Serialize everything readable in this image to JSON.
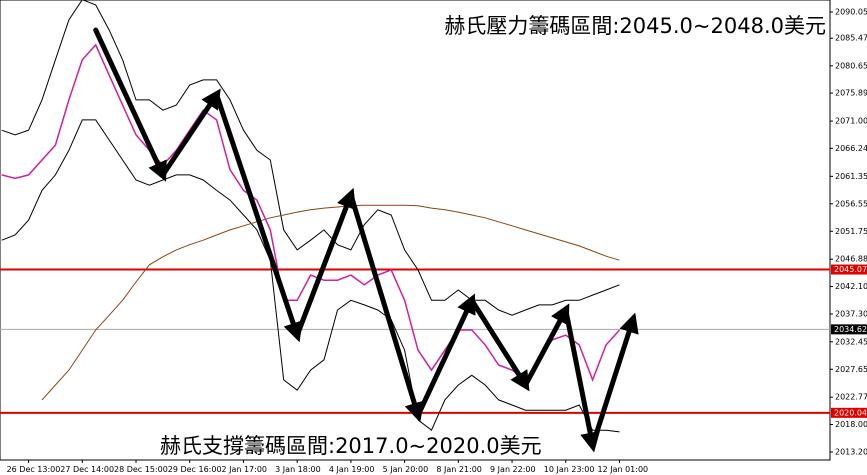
{
  "chart_data": {
    "type": "line",
    "categories": [
      null,
      null,
      "26 Dec 13:00",
      null,
      null,
      null,
      "27 Dec 14:00",
      null,
      null,
      null,
      "28 Dec 15:00",
      null,
      null,
      null,
      "29 Dec 16:00",
      null,
      null,
      null,
      "2 Jan 17:00",
      null,
      null,
      null,
      "3 Jan 18:00",
      null,
      null,
      null,
      "4 Jan 19:00",
      null,
      null,
      null,
      "5 Jan 20:00",
      null,
      null,
      null,
      "8 Jan 21:00",
      null,
      null,
      null,
      "9 Jan 22:00",
      null,
      null,
      null,
      "10 Jan 23:00",
      null,
      null,
      null,
      "12 Jan 01:00",
      null
    ],
    "series": [
      {
        "color": "#000000",
        "values": [
          2069.4,
          2068.6,
          2069.4,
          2074.7,
          2081.7,
          2088.7,
          2092.2,
          2091.3,
          2086.9,
          2081.7,
          2074.7,
          2074.7,
          2072.9,
          2073.8,
          2077.3,
          2078.2,
          2078.2,
          2074.7,
          2069.4,
          2065.9,
          2064.2,
          2052.0,
          2048.5,
          2050.2,
          2052.0,
          2049.4,
          2048.5,
          2052.9,
          2055.5,
          2054.6,
          2048.5,
          2045.0,
          2039.7,
          2039.7,
          2041.5,
          2039.7,
          2039.7,
          2038.0,
          2037.1,
          2038.0,
          2038.9,
          2038.9,
          2039.7,
          2039.7,
          2040.6,
          2041.5,
          2042.4,
          null
        ]
      },
      {
        "color": "#000000",
        "values": [
          2050.2,
          2051.1,
          2053.7,
          2058.9,
          2061.6,
          2065.9,
          2071.2,
          2071.2,
          2067.7,
          2064.2,
          2060.7,
          2059.8,
          2060.7,
          2061.6,
          2061.6,
          2060.7,
          2058.9,
          2057.2,
          2054.6,
          2052.0,
          2046.7,
          2025.8,
          2024.0,
          2027.5,
          2029.3,
          2038.0,
          2039.7,
          2038.9,
          2038.0,
          2036.3,
          2031.0,
          2018.8,
          2017.0,
          2022.3,
          2024.9,
          2026.6,
          2024.9,
          2022.3,
          2021.4,
          2020.5,
          2020.5,
          2020.5,
          2020.5,
          2021.4,
          2017.0,
          2017.0,
          2016.7,
          null
        ]
      },
      {
        "color": "#8b4513",
        "values": [
          null,
          null,
          null,
          2022.3,
          2024.9,
          2027.5,
          2031.0,
          2034.5,
          2037.1,
          2039.7,
          2042.9,
          2045.9,
          2047.3,
          2048.5,
          2049.4,
          2050.2,
          2051.1,
          2052.0,
          2052.7,
          2053.4,
          2054.1,
          2054.6,
          2055.1,
          2055.5,
          2055.8,
          2056.0,
          2056.2,
          2056.3,
          2056.3,
          2056.3,
          2056.3,
          2056.2,
          2055.8,
          2055.5,
          2055.1,
          2054.6,
          2054.1,
          2053.4,
          2052.7,
          2052.0,
          2051.3,
          2050.6,
          2049.9,
          2049.2,
          2048.3,
          2047.4,
          2046.7,
          null
        ]
      },
      {
        "color": "#d020a0",
        "values": [
          2061.6,
          2061.0,
          2061.6,
          2064.2,
          2066.8,
          2074.7,
          2081.7,
          2084.3,
          2079.0,
          2073.8,
          2068.6,
          2065.9,
          2063.3,
          2065.9,
          2069.4,
          2072.9,
          2071.2,
          2062.5,
          2058.9,
          2057.2,
          2052.0,
          2039.7,
          2039.7,
          2044.1,
          2043.2,
          2043.2,
          2044.1,
          2042.4,
          2044.1,
          2045.0,
          2039.7,
          2031.0,
          2027.5,
          2031.0,
          2034.5,
          2034.5,
          2031.9,
          2028.4,
          2027.5,
          2025.8,
          2029.3,
          2032.8,
          2033.6,
          2031.9,
          2025.8,
          2031.9,
          2034.5,
          null
        ]
      }
    ],
    "zigzag": {
      "color": "#000000",
      "values": [
        null,
        null,
        null,
        null,
        null,
        null,
        null,
        2086.9,
        null,
        null,
        null,
        null,
        2061.6,
        null,
        null,
        null,
        2075.6,
        null,
        null,
        null,
        null,
        null,
        2033.6,
        null,
        null,
        null,
        2058.1,
        null,
        null,
        null,
        null,
        2019.6,
        null,
        null,
        null,
        2039.7,
        null,
        null,
        null,
        2024.9,
        null,
        null,
        2038.0,
        null,
        2014.4,
        null,
        null,
        2036.3
      ]
    },
    "levels": [
      {
        "value": 2045.07,
        "color": "#e00000"
      },
      {
        "value": 2034.62,
        "color": "#000000"
      },
      {
        "value": 2020.04,
        "color": "#e00000"
      }
    ],
    "ylim": [
      2011.8,
      2092.15
    ],
    "yticks": [
      2090.05,
      {
        "value": 2085.47,
        "label": "2085.47"
      },
      2080.65,
      2075.89,
      {
        "value": 2071.0,
        "label": "2071.00"
      },
      2066.24,
      2061.35,
      2056.55,
      2051.75,
      2046.88,
      {
        "value": 2042.1,
        "label": "2042.10"
      },
      {
        "value": 2037.3,
        "label": "2037.30"
      },
      2032.45,
      2027.65,
      2022.77,
      {
        "value": 2018.0,
        "label": "2018.00"
      },
      {
        "value": 2013.2,
        "label": "2013.20"
      }
    ],
    "annotations": [
      "赫氏壓力籌碼區間:2045.0~2048.0美元",
      "赫氏支撐籌碼區間:2017.0~2020.0美元"
    ]
  }
}
